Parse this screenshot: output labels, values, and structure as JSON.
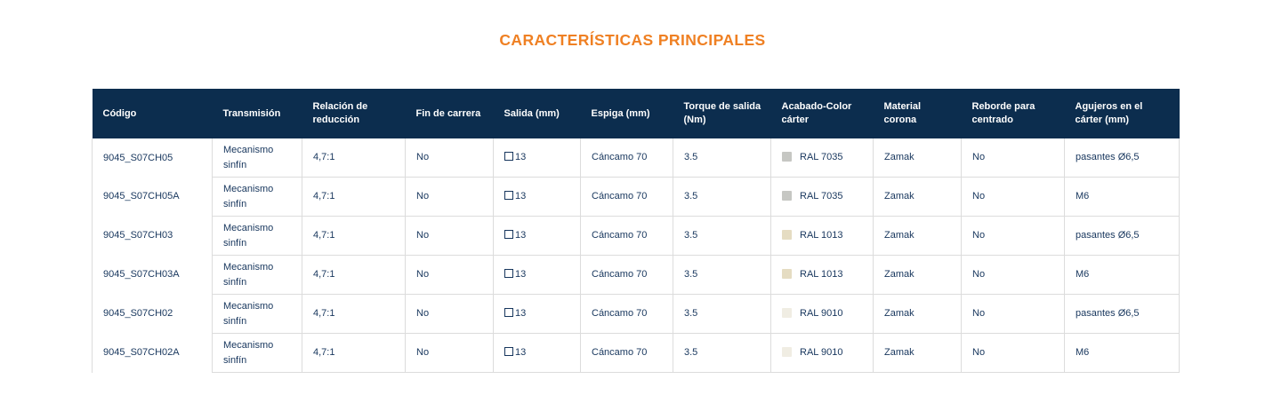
{
  "page": {
    "title": "CARACTERÍSTICAS PRINCIPALES"
  },
  "colors": {
    "title_orange": "#EF8023",
    "header_bg": "#0C2D4E",
    "body_text": "#17365D",
    "grid_border": "#DCDCDC"
  },
  "table": {
    "columns": [
      "Código",
      "Transmisión",
      "Relación de reducción",
      "Fin de carrera",
      "Salida (mm)",
      "Espiga (mm)",
      "Torque de salida (Nm)",
      "Acabado-Color cárter",
      "Material corona",
      "Reborde para centrado",
      "Agujeros en el cárter (mm)"
    ],
    "salida_icon": "square-outline-icon",
    "rows": [
      {
        "codigo": "9045_S07CH05",
        "transmision": "Mecanismo sinfín",
        "relacion_reduccion": "4,7:1",
        "fin_de_carrera": "No",
        "salida": "13",
        "espiga": "Cáncamo 70",
        "torque": "3.5",
        "acabado_label": "RAL 7035",
        "acabado_hex": "#C6C7C3",
        "material_corona": "Zamak",
        "reborde": "No",
        "agujeros": "pasantes Ø6,5"
      },
      {
        "codigo": "9045_S07CH05A",
        "transmision": "Mecanismo sinfín",
        "relacion_reduccion": "4,7:1",
        "fin_de_carrera": "No",
        "salida": "13",
        "espiga": "Cáncamo 70",
        "torque": "3.5",
        "acabado_label": "RAL 7035",
        "acabado_hex": "#C6C7C3",
        "material_corona": "Zamak",
        "reborde": "No",
        "agujeros": "M6"
      },
      {
        "codigo": "9045_S07CH03",
        "transmision": "Mecanismo sinfín",
        "relacion_reduccion": "4,7:1",
        "fin_de_carrera": "No",
        "salida": "13",
        "espiga": "Cáncamo 70",
        "torque": "3.5",
        "acabado_label": "RAL 1013",
        "acabado_hex": "#E5DCC2",
        "material_corona": "Zamak",
        "reborde": "No",
        "agujeros": "pasantes Ø6,5"
      },
      {
        "codigo": "9045_S07CH03A",
        "transmision": "Mecanismo sinfín",
        "relacion_reduccion": "4,7:1",
        "fin_de_carrera": "No",
        "salida": "13",
        "espiga": "Cáncamo 70",
        "torque": "3.5",
        "acabado_label": "RAL 1013",
        "acabado_hex": "#E5DCC2",
        "material_corona": "Zamak",
        "reborde": "No",
        "agujeros": "M6"
      },
      {
        "codigo": "9045_S07CH02",
        "transmision": "Mecanismo sinfín",
        "relacion_reduccion": "4,7:1",
        "fin_de_carrera": "No",
        "salida": "13",
        "espiga": "Cáncamo 70",
        "torque": "3.5",
        "acabado_label": "RAL 9010",
        "acabado_hex": "#F0EDE3",
        "material_corona": "Zamak",
        "reborde": "No",
        "agujeros": "pasantes Ø6,5"
      },
      {
        "codigo": "9045_S07CH02A",
        "transmision": "Mecanismo sinfín",
        "relacion_reduccion": "4,7:1",
        "fin_de_carrera": "No",
        "salida": "13",
        "espiga": "Cáncamo 70",
        "torque": "3.5",
        "acabado_label": "RAL 9010",
        "acabado_hex": "#F0EDE3",
        "material_corona": "Zamak",
        "reborde": "No",
        "agujeros": "M6"
      }
    ]
  }
}
